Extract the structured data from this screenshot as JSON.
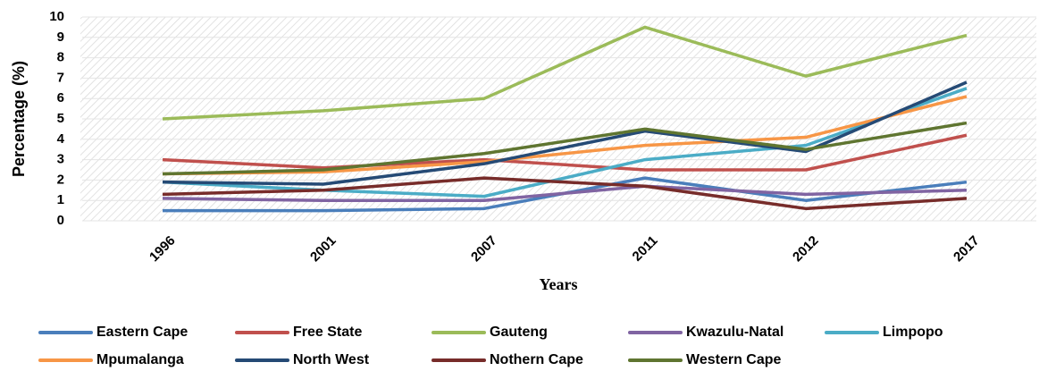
{
  "chart_data": {
    "type": "line",
    "x_label": "Years",
    "y_label": "Percentage (%)",
    "categories": [
      "1996",
      "2001",
      "2007",
      "2011",
      "2012",
      "2017"
    ],
    "ylim": [
      0,
      10
    ],
    "yticks": [
      0,
      1,
      2,
      3,
      4,
      5,
      6,
      7,
      8,
      9,
      10
    ],
    "series": [
      {
        "name": "Eastern Cape",
        "color": "#4a7ebb",
        "values": [
          0.5,
          0.5,
          0.6,
          2.1,
          1.0,
          1.9
        ]
      },
      {
        "name": "Free State",
        "color": "#c0504d",
        "values": [
          3.0,
          2.6,
          3.0,
          2.5,
          2.5,
          4.2
        ]
      },
      {
        "name": "Gauteng",
        "color": "#9bbb59",
        "values": [
          5.0,
          5.4,
          6.0,
          9.5,
          7.1,
          9.1
        ]
      },
      {
        "name": "Kwazulu-Natal",
        "color": "#8064a2",
        "values": [
          1.1,
          1.0,
          1.0,
          1.7,
          1.3,
          1.5
        ]
      },
      {
        "name": "Limpopo",
        "color": "#4bacc6",
        "values": [
          1.9,
          1.5,
          1.2,
          3.0,
          3.7,
          6.5
        ]
      },
      {
        "name": "Mpumalanga",
        "color": "#f79646",
        "values": [
          2.3,
          2.4,
          2.9,
          3.7,
          4.1,
          6.1
        ]
      },
      {
        "name": "North West",
        "color": "#254a75",
        "values": [
          1.9,
          1.8,
          2.8,
          4.4,
          3.4,
          6.8
        ]
      },
      {
        "name": "Nothern Cape",
        "color": "#772c2a",
        "values": [
          1.3,
          1.5,
          2.1,
          1.7,
          0.6,
          1.1
        ]
      },
      {
        "name": "Western Cape",
        "color": "#5f7530",
        "values": [
          2.3,
          2.5,
          3.3,
          4.5,
          3.5,
          4.8
        ]
      }
    ]
  }
}
